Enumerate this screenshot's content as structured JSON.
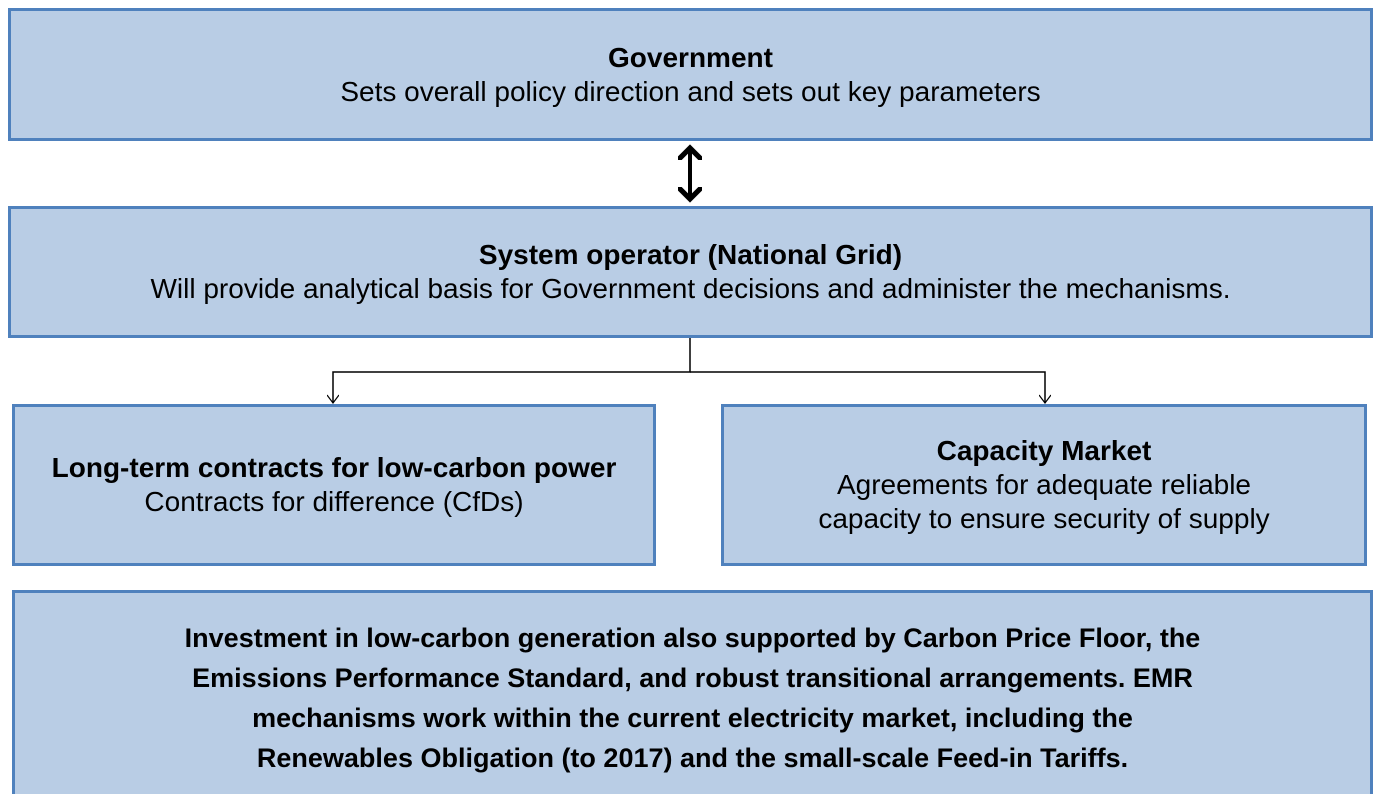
{
  "government": {
    "title": "Government",
    "text": "Sets overall policy direction and sets out key parameters"
  },
  "system_operator": {
    "title": "System operator (National Grid)",
    "text": "Will provide analytical basis for Government decisions and administer the mechanisms."
  },
  "contracts": {
    "title": "Long-term contracts for low-carbon power",
    "text": "Contracts for difference (CfDs)"
  },
  "capacity_market": {
    "title": "Capacity Market",
    "text": [
      "Agreements for adequate reliable",
      "capacity to ensure security of supply"
    ]
  },
  "footer": {
    "lines": [
      "Investment in low-carbon generation also supported by Carbon Price Floor, the",
      "Emissions Performance Standard, and robust transitional arrangements. EMR",
      "mechanisms work within the current electricity market, including the",
      "Renewables Obligation (to 2017) and the small-scale Feed-in Tariffs."
    ]
  }
}
